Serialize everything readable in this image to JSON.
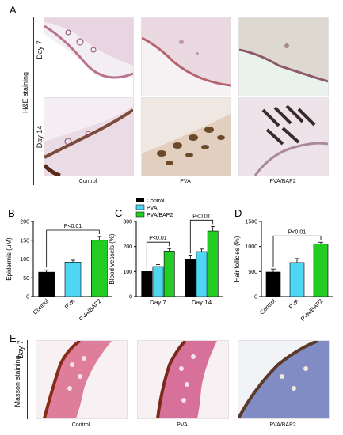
{
  "panel_a": {
    "letter": "A",
    "row_group_label": "H&E staining",
    "row_labels": [
      "Day 7",
      "Day 14"
    ],
    "col_labels": [
      "Control",
      "PVA",
      "PVA/BAP2"
    ]
  },
  "panel_e": {
    "letter": "E",
    "row_group_label": "Masson staining",
    "row_label": "Day 7",
    "col_labels": [
      "Control",
      "PVA",
      "PVA/BAP2"
    ]
  },
  "legend": {
    "entries": [
      {
        "label": "Control",
        "color": "#000000"
      },
      {
        "label": "PVA",
        "color": "#4fd6f2"
      },
      {
        "label": "PVA/BAP2",
        "color": "#22cc22"
      }
    ]
  },
  "chart_data": [
    {
      "panel": "B",
      "type": "bar",
      "categories": [
        "Control",
        "PVA",
        "PVA/BAP2"
      ],
      "values": [
        65,
        92,
        150
      ],
      "errors": [
        6,
        5,
        10
      ],
      "colors": [
        "#000000",
        "#4fd6f2",
        "#22cc22"
      ],
      "ylabel": "Epidermis (μM)",
      "ylim": [
        0,
        200
      ],
      "yticks": [
        0,
        50,
        100,
        150,
        200
      ],
      "annotation": {
        "text": "P<0.01",
        "from": 0,
        "to": 2
      }
    },
    {
      "panel": "C",
      "type": "bar",
      "categories": [
        "Day 7",
        "Day 14"
      ],
      "series": [
        {
          "name": "Control",
          "values": [
            100,
            148
          ],
          "errors": [
            0,
            15
          ]
        },
        {
          "name": "PVA",
          "values": [
            120,
            180
          ],
          "errors": [
            8,
            10
          ]
        },
        {
          "name": "PVA/BAP2",
          "values": [
            182,
            262
          ],
          "errors": [
            10,
            18
          ]
        }
      ],
      "ylabel": "Blood vessels (%)",
      "ylim": [
        0,
        300
      ],
      "yticks": [
        0,
        100,
        200,
        300
      ],
      "annotations": [
        {
          "text": "P<0.01",
          "category": 0
        },
        {
          "text": "P<0.01",
          "category": 1
        }
      ]
    },
    {
      "panel": "D",
      "type": "bar",
      "categories": [
        "Control",
        "PVA",
        "PVA/BAP2"
      ],
      "values": [
        490,
        680,
        1050
      ],
      "errors": [
        60,
        80,
        35
      ],
      "colors": [
        "#000000",
        "#4fd6f2",
        "#22cc22"
      ],
      "ylabel": "Hair follicles (%)",
      "ylim": [
        0,
        1500
      ],
      "yticks": [
        0,
        500,
        1000,
        1500
      ],
      "annotation": {
        "text": "P<0.01",
        "from": 0,
        "to": 2
      }
    }
  ]
}
